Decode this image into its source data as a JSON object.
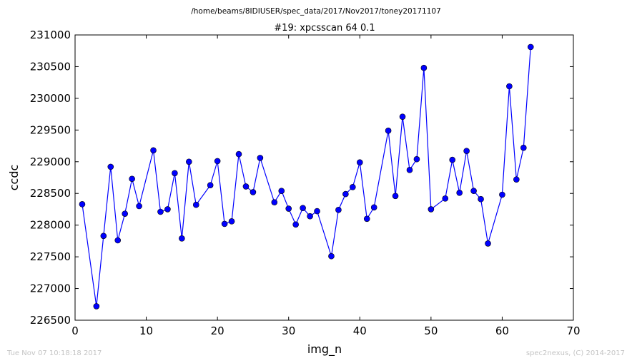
{
  "header": {
    "path": "/home/beams/8IDIUSER/spec_data/2017/Nov2017/toney20171107",
    "title": "#19: xpcsscan 64 0.1"
  },
  "footer": {
    "timestamp": "Tue Nov 07 10:18:18 2017",
    "credit": "spec2nexus, (C) 2014-2017"
  },
  "chart_data": {
    "type": "line",
    "title": "#19: xpcsscan 64 0.1",
    "xlabel": "img_n",
    "ylabel": "ccdc",
    "xlim": [
      0,
      70
    ],
    "ylim": [
      226500,
      231000
    ],
    "xticks": [
      0,
      10,
      20,
      30,
      40,
      50,
      60,
      70
    ],
    "yticks": [
      226500,
      227000,
      227500,
      228000,
      228500,
      229000,
      229500,
      230000,
      230500,
      231000
    ],
    "grid": false,
    "series": [
      {
        "color": "#0000ff",
        "marker": "circle",
        "x": [
          1,
          3,
          4,
          5,
          6,
          7,
          8,
          9,
          11,
          12,
          13,
          14,
          15,
          16,
          17,
          19,
          20,
          21,
          22,
          23,
          24,
          25,
          26,
          28,
          29,
          30,
          31,
          32,
          33,
          34,
          36,
          37,
          38,
          39,
          40,
          41,
          42,
          44,
          45,
          46,
          47,
          48,
          49,
          50,
          52,
          53,
          54,
          55,
          56,
          57,
          58,
          60,
          61,
          62,
          63,
          64
        ],
        "y": [
          228330,
          226720,
          227830,
          228920,
          227760,
          228180,
          228730,
          228300,
          229180,
          228210,
          228250,
          228820,
          227790,
          229000,
          228320,
          228630,
          229010,
          228020,
          228060,
          229120,
          228610,
          228520,
          229060,
          228360,
          228540,
          228260,
          228010,
          228270,
          228140,
          228220,
          227510,
          228240,
          228490,
          228600,
          228990,
          228100,
          228280,
          229490,
          228460,
          229710,
          228870,
          229040,
          230480,
          228250,
          228420,
          229030,
          228510,
          229170,
          228540,
          228410,
          227710,
          228480,
          230190,
          228720,
          229220,
          230810
        ]
      }
    ]
  }
}
